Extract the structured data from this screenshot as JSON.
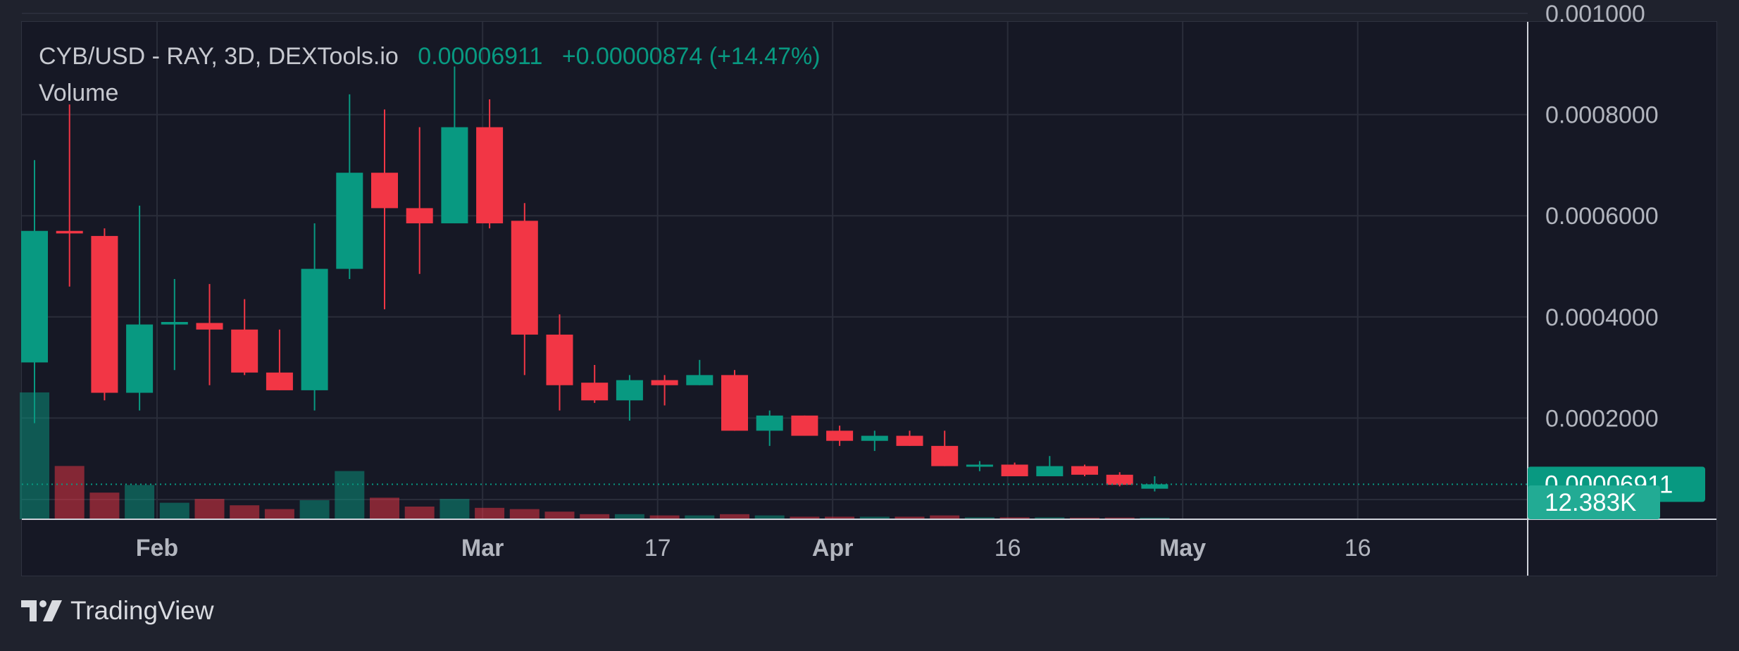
{
  "legend": {
    "symbol": "CYB/USD - RAY, 3D, DEXTools.io",
    "last": "0.00006911",
    "change": "+0.00000874 (+14.47%)",
    "volume_label": "Volume"
  },
  "branding": {
    "logo_icon": "tradingview-logo-icon",
    "name": "TradingView"
  },
  "colors": {
    "up": "#089981",
    "down": "#f23645",
    "background": "#161825",
    "grid": "#2a2d3a",
    "axis_text": "#b2b5be"
  },
  "chart_data": {
    "type": "candlestick",
    "interval": "3D",
    "ylim": [
      0,
      0.001
    ],
    "y_ticks": [
      "0.0002000",
      "0.0004000",
      "0.0006000",
      "0.0008000",
      "0.001000"
    ],
    "x_ticks": [
      {
        "label": "Feb",
        "bold": true,
        "candle_index": 3.5
      },
      {
        "label": "Mar",
        "bold": true,
        "candle_index": 12.8
      },
      {
        "label": "17",
        "bold": false,
        "candle_index": 17.8
      },
      {
        "label": "Apr",
        "bold": true,
        "candle_index": 22.8
      },
      {
        "label": "16",
        "bold": false,
        "candle_index": 27.8
      },
      {
        "label": "May",
        "bold": true,
        "candle_index": 32.8
      },
      {
        "label": "16",
        "bold": false,
        "candle_index": 37.8
      }
    ],
    "last_price_label": "0.00006911",
    "volume_label": "12.383K",
    "candles": [
      {
        "o": 0.00031,
        "h": 0.00071,
        "l": 0.00019,
        "c": 0.00057,
        "v": 100
      },
      {
        "o": 0.00057,
        "h": 0.00082,
        "l": 0.00046,
        "c": 0.000565,
        "v": 42
      },
      {
        "o": 0.00056,
        "h": 0.000575,
        "l": 0.000235,
        "c": 0.00025,
        "v": 21
      },
      {
        "o": 0.00025,
        "h": 0.00062,
        "l": 0.000215,
        "c": 0.000385,
        "v": 27
      },
      {
        "o": 0.000385,
        "h": 0.000475,
        "l": 0.000295,
        "c": 0.00039,
        "v": 13
      },
      {
        "o": 0.000388,
        "h": 0.000465,
        "l": 0.000265,
        "c": 0.000375,
        "v": 16
      },
      {
        "o": 0.000375,
        "h": 0.000435,
        "l": 0.000285,
        "c": 0.00029,
        "v": 11
      },
      {
        "o": 0.00029,
        "h": 0.000375,
        "l": 0.000255,
        "c": 0.000255,
        "v": 8
      },
      {
        "o": 0.000255,
        "h": 0.000585,
        "l": 0.000215,
        "c": 0.000495,
        "v": 15
      },
      {
        "o": 0.000495,
        "h": 0.00084,
        "l": 0.000475,
        "c": 0.000685,
        "v": 38
      },
      {
        "o": 0.000685,
        "h": 0.00081,
        "l": 0.000415,
        "c": 0.000615,
        "v": 17
      },
      {
        "o": 0.000615,
        "h": 0.000775,
        "l": 0.000485,
        "c": 0.000585,
        "v": 10
      },
      {
        "o": 0.000585,
        "h": 0.000895,
        "l": 0.000585,
        "c": 0.000775,
        "v": 16
      },
      {
        "o": 0.000775,
        "h": 0.00083,
        "l": 0.000575,
        "c": 0.000585,
        "v": 9
      },
      {
        "o": 0.00059,
        "h": 0.000625,
        "l": 0.000285,
        "c": 0.000365,
        "v": 8
      },
      {
        "o": 0.000365,
        "h": 0.000405,
        "l": 0.000215,
        "c": 0.000265,
        "v": 6
      },
      {
        "o": 0.00027,
        "h": 0.000305,
        "l": 0.00023,
        "c": 0.000235,
        "v": 4
      },
      {
        "o": 0.000235,
        "h": 0.000285,
        "l": 0.000195,
        "c": 0.000275,
        "v": 4
      },
      {
        "o": 0.000275,
        "h": 0.000285,
        "l": 0.000225,
        "c": 0.000265,
        "v": 3
      },
      {
        "o": 0.000265,
        "h": 0.000315,
        "l": 0.000265,
        "c": 0.000285,
        "v": 3
      },
      {
        "o": 0.000285,
        "h": 0.000295,
        "l": 0.000175,
        "c": 0.000175,
        "v": 4
      },
      {
        "o": 0.000175,
        "h": 0.000215,
        "l": 0.000145,
        "c": 0.000205,
        "v": 3
      },
      {
        "o": 0.000205,
        "h": 0.000205,
        "l": 0.000165,
        "c": 0.000165,
        "v": 2
      },
      {
        "o": 0.000175,
        "h": 0.000185,
        "l": 0.000145,
        "c": 0.000155,
        "v": 2
      },
      {
        "o": 0.000155,
        "h": 0.000175,
        "l": 0.000135,
        "c": 0.000165,
        "v": 2
      },
      {
        "o": 0.000165,
        "h": 0.000175,
        "l": 0.000145,
        "c": 0.000145,
        "v": 2
      },
      {
        "o": 0.000145,
        "h": 0.000175,
        "l": 0.000105,
        "c": 0.000105,
        "v": 3
      },
      {
        "o": 0.000105,
        "h": 0.000115,
        "l": 9.5e-05,
        "c": 0.000108,
        "v": 1.5
      },
      {
        "o": 0.000108,
        "h": 0.000112,
        "l": 8.5e-05,
        "c": 8.5e-05,
        "v": 1.5
      },
      {
        "o": 8.5e-05,
        "h": 0.000125,
        "l": 8.5e-05,
        "c": 0.000105,
        "v": 1.5
      },
      {
        "o": 0.000105,
        "h": 0.000108,
        "l": 8.5e-05,
        "c": 8.8e-05,
        "v": 1.2
      },
      {
        "o": 8.8e-05,
        "h": 9.3e-05,
        "l": 6.5e-05,
        "c": 6.8e-05,
        "v": 1.3
      },
      {
        "o": 6.037e-05,
        "h": 8.5e-05,
        "l": 5.5e-05,
        "c": 6.911e-05,
        "v": 1.2
      }
    ]
  }
}
